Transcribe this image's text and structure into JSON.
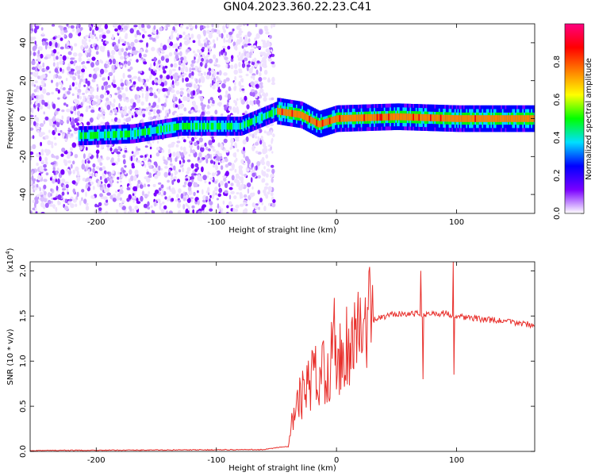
{
  "title": "GN04.2023.360.22.23.C41",
  "chart_data": [
    {
      "type": "heatmap",
      "xlabel": "Height of straight line (km)",
      "ylabel": "Frequency (Hz)",
      "xlim": [
        -255,
        165
      ],
      "ylim": [
        -50,
        50
      ],
      "xticks": [
        -200,
        -100,
        0,
        100
      ],
      "yticks": [
        -40,
        -20,
        0,
        20,
        40
      ],
      "colorbar": {
        "label": "Normalized spectral amplitude",
        "range": [
          0,
          1
        ],
        "ticks": [
          0.0,
          0.2,
          0.4,
          0.6,
          0.8
        ],
        "colors": [
          "#ffffff",
          "#7a00ff",
          "#0000ff",
          "#00e0ff",
          "#00ff00",
          "#ffff00",
          "#ff8000",
          "#ff0000",
          "#ff0080"
        ]
      },
      "ridge": [
        {
          "x": -210,
          "f": -9
        },
        {
          "x": -170,
          "f": -8
        },
        {
          "x": -130,
          "f": -4
        },
        {
          "x": -80,
          "f": -4
        },
        {
          "x": -50,
          "f": 4
        },
        {
          "x": -30,
          "f": 2
        },
        {
          "x": -15,
          "f": -3
        },
        {
          "x": 0,
          "f": 0
        },
        {
          "x": 50,
          "f": 1
        },
        {
          "x": 100,
          "f": 0
        },
        {
          "x": 165,
          "f": 0
        }
      ]
    },
    {
      "type": "line",
      "xlabel": "Height of straight line (km)",
      "ylabel": "SNR (10 * v/v)",
      "yscale_label": "(x10",
      "yscale_exp": "4",
      "yscale_close": ")",
      "xlim": [
        -255,
        165
      ],
      "ylim": [
        0,
        2.1
      ],
      "xticks": [
        -200,
        -100,
        0,
        100
      ],
      "yticks": [
        "0.0",
        "0.5",
        "1.0",
        "1.5",
        "2.0"
      ],
      "color": "#e8302c",
      "envelope": [
        {
          "x": -255,
          "y": 0.01
        },
        {
          "x": -60,
          "y": 0.02
        },
        {
          "x": -45,
          "y": 0.05
        },
        {
          "x": -40,
          "y": 0.05
        },
        {
          "x": -38,
          "y": 0.3
        },
        {
          "x": -30,
          "y": 0.6
        },
        {
          "x": -20,
          "y": 0.8
        },
        {
          "x": -10,
          "y": 0.95
        },
        {
          "x": 0,
          "y": 1.05
        },
        {
          "x": 10,
          "y": 1.2
        },
        {
          "x": 20,
          "y": 1.35
        },
        {
          "x": 30,
          "y": 1.45
        },
        {
          "x": 50,
          "y": 1.53
        },
        {
          "x": 70,
          "y": 1.52
        },
        {
          "x": 90,
          "y": 1.53
        },
        {
          "x": 110,
          "y": 1.48
        },
        {
          "x": 140,
          "y": 1.44
        },
        {
          "x": 165,
          "y": 1.4
        }
      ],
      "spikes": [
        {
          "x": -2,
          "y": 1.7
        },
        {
          "x": 70,
          "y": 2.0
        },
        {
          "x": 72,
          "y": 0.8
        },
        {
          "x": 97,
          "y": 2.1
        },
        {
          "x": 98,
          "y": 0.85
        }
      ]
    }
  ]
}
